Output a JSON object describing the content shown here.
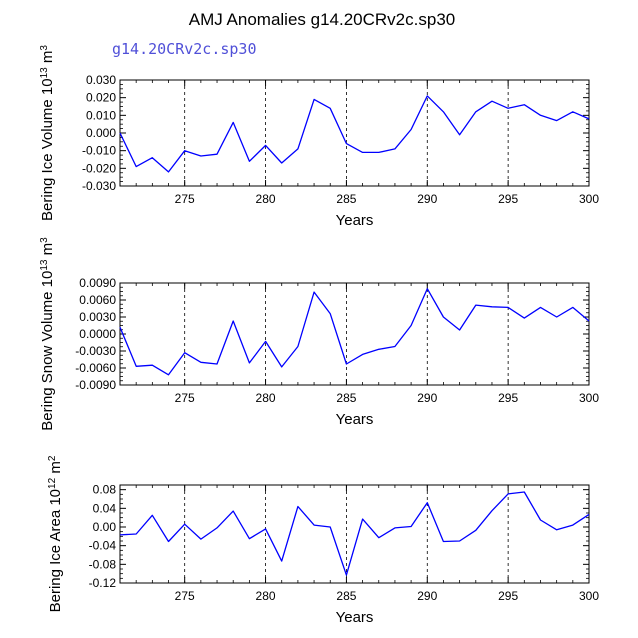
{
  "title": "AMJ Anomalies g14.20CRv2c.sp30",
  "subtitle": "g14.20CRv2c.sp30",
  "colors": {
    "series": "#0000ff",
    "axis": "#000000",
    "grid": "#000000",
    "subtitle": "#5050d8"
  },
  "chart_data": [
    {
      "type": "line",
      "ylabel_main": "Bering Ice Volume 10",
      "ylabel_exp": "13",
      "ylabel_unit": " m",
      "ylabel_unit_exp": "3",
      "xlabel": "Years",
      "xlim": [
        271,
        300
      ],
      "ylim": [
        -0.03,
        0.03
      ],
      "yticks": [
        -0.03,
        -0.02,
        -0.01,
        0.0,
        0.01,
        0.02,
        0.03
      ],
      "ytick_labels": [
        "-0.030",
        "-0.020",
        "-0.010",
        "0.000",
        "0.010",
        "0.020",
        "0.030"
      ],
      "xticks": [
        275,
        280,
        285,
        290,
        295,
        300
      ],
      "xtick_labels": [
        "275",
        "280",
        "285",
        "290",
        "295",
        "300"
      ],
      "grid_x": [
        275,
        280,
        285,
        290,
        295
      ],
      "x": [
        271,
        272,
        273,
        274,
        275,
        276,
        277,
        278,
        279,
        280,
        281,
        282,
        283,
        284,
        285,
        286,
        287,
        288,
        289,
        290,
        291,
        292,
        293,
        294,
        295,
        296,
        297,
        298,
        299,
        300
      ],
      "y": [
        0.0,
        -0.019,
        -0.014,
        -0.022,
        -0.01,
        -0.013,
        -0.012,
        0.006,
        -0.016,
        -0.007,
        -0.017,
        -0.009,
        0.019,
        0.014,
        -0.006,
        -0.011,
        -0.011,
        -0.009,
        0.002,
        0.021,
        0.012,
        -0.001,
        0.012,
        0.018,
        0.014,
        0.016,
        0.01,
        0.007,
        0.012,
        0.008
      ]
    },
    {
      "type": "line",
      "ylabel_main": "Bering Snow Volume 10",
      "ylabel_exp": "13",
      "ylabel_unit": " m",
      "ylabel_unit_exp": "3",
      "xlabel": "Years",
      "xlim": [
        271,
        300
      ],
      "ylim": [
        -0.009,
        0.009
      ],
      "yticks": [
        -0.009,
        -0.006,
        -0.003,
        0.0,
        0.003,
        0.006,
        0.009
      ],
      "ytick_labels": [
        "-0.0090",
        "-0.0060",
        "-0.0030",
        "0.0000",
        "0.0030",
        "0.0060",
        "0.0090"
      ],
      "xticks": [
        275,
        280,
        285,
        290,
        295,
        300
      ],
      "xtick_labels": [
        "275",
        "280",
        "285",
        "290",
        "295",
        "300"
      ],
      "grid_x": [
        275,
        280,
        285,
        290,
        295
      ],
      "x": [
        271,
        272,
        273,
        274,
        275,
        276,
        277,
        278,
        279,
        280,
        281,
        282,
        283,
        284,
        285,
        286,
        287,
        288,
        289,
        290,
        291,
        292,
        293,
        294,
        295,
        296,
        297,
        298,
        299,
        300
      ],
      "y": [
        0.0012,
        -0.0057,
        -0.0055,
        -0.0072,
        -0.0033,
        -0.005,
        -0.0053,
        0.0023,
        -0.0051,
        -0.0013,
        -0.0058,
        -0.0022,
        0.0074,
        0.0036,
        -0.0053,
        -0.0036,
        -0.0027,
        -0.0022,
        0.0015,
        0.008,
        0.003,
        0.0007,
        0.0051,
        0.0048,
        0.0047,
        0.0028,
        0.0047,
        0.003,
        0.0047,
        0.0023
      ]
    },
    {
      "type": "line",
      "ylabel_main": "Bering Ice Area 10",
      "ylabel_exp": "12",
      "ylabel_unit": " m",
      "ylabel_unit_exp": "2",
      "xlabel": "Years",
      "xlim": [
        271,
        300
      ],
      "ylim": [
        -0.12,
        0.09
      ],
      "yticks": [
        -0.12,
        -0.08,
        -0.04,
        0.0,
        0.04,
        0.08
      ],
      "ytick_labels": [
        "-0.12",
        "-0.08",
        "-0.04",
        "0.00",
        "0.04",
        "0.08"
      ],
      "xticks": [
        275,
        280,
        285,
        290,
        295,
        300
      ],
      "xtick_labels": [
        "275",
        "280",
        "285",
        "290",
        "295",
        "300"
      ],
      "grid_x": [
        275,
        280,
        285,
        290,
        295
      ],
      "x": [
        271,
        272,
        273,
        274,
        275,
        276,
        277,
        278,
        279,
        280,
        281,
        282,
        283,
        284,
        285,
        286,
        287,
        288,
        289,
        290,
        291,
        292,
        293,
        294,
        295,
        296,
        297,
        298,
        299,
        300
      ],
      "y": [
        -0.017,
        -0.015,
        0.025,
        -0.031,
        0.006,
        -0.026,
        -0.002,
        0.034,
        -0.025,
        -0.004,
        -0.073,
        0.044,
        0.004,
        0.0,
        -0.103,
        0.017,
        -0.023,
        -0.002,
        0.001,
        0.052,
        -0.031,
        -0.03,
        -0.007,
        0.035,
        0.071,
        0.075,
        0.015,
        -0.006,
        0.004,
        0.027
      ]
    }
  ]
}
